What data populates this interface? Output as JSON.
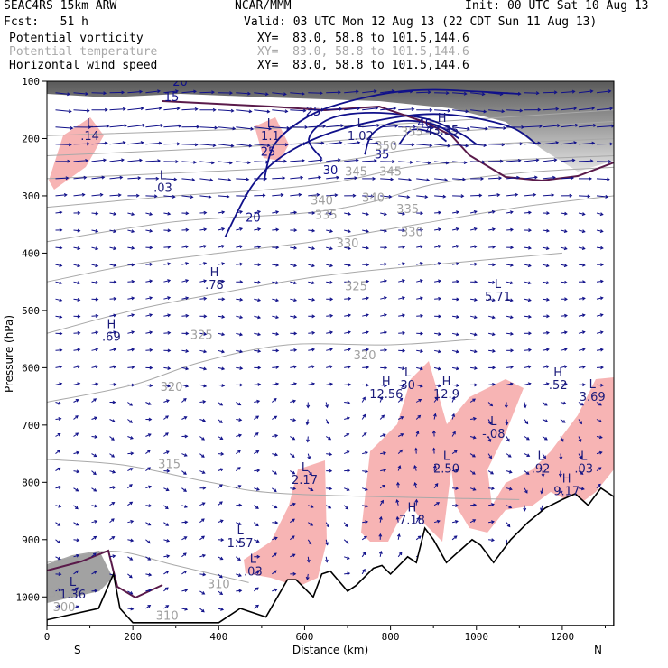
{
  "header": {
    "model": "SEAC4RS 15km ARW",
    "org": "NCAR/MMM",
    "init": "Init: 00 UTC Sat 10 Aug 13",
    "fcst": "Fcst:   51 h",
    "valid": "Valid: 03 UTC Mon 12 Aug 13 (22 CDT Sun 11 Aug 13)",
    "fields": [
      {
        "name": "Potential vorticity",
        "xy": "XY=  83.0, 58.8 to 101.5,144.6",
        "color": "#000000"
      },
      {
        "name": "Potential temperature",
        "xy": "XY=  83.0, 58.8 to 101.5,144.6",
        "color": "#a8a8a8"
      },
      {
        "name": "Horizontal wind speed",
        "xy": "XY=  83.0, 58.8 to 101.5,144.6",
        "color": "#000000"
      }
    ]
  },
  "chart_data": {
    "type": "cross-section",
    "xlabel": "Distance (km)",
    "ylabel": "Pressure (hPa)",
    "xlim": [
      0,
      1320
    ],
    "ylim": [
      1050,
      100
    ],
    "x_ticks": [
      0,
      200,
      400,
      600,
      800,
      1000,
      1200
    ],
    "y_ticks": [
      100,
      200,
      300,
      400,
      500,
      600,
      700,
      800,
      900,
      1000
    ],
    "x_end_labels": [
      "S",
      "N"
    ],
    "wind_speed_contours": [
      {
        "value": 20,
        "points": [
          [
            415,
            372
          ],
          [
            480,
            280
          ],
          [
            560,
            225
          ],
          [
            680,
            185
          ],
          [
            840,
            160
          ],
          [
            960,
            160
          ],
          [
            1080,
            180
          ],
          [
            1140,
            210
          ]
        ]
      },
      {
        "value": 25,
        "points": [
          [
            505,
            275
          ],
          [
            530,
            210
          ],
          [
            600,
            165
          ],
          [
            680,
            140
          ],
          [
            800,
            120
          ],
          [
            900,
            115
          ],
          [
            1000,
            118
          ],
          [
            1100,
            122
          ]
        ]
      },
      {
        "value": 30,
        "points": [
          [
            640,
            235
          ],
          [
            610,
            200
          ],
          [
            660,
            165
          ],
          [
            760,
            155
          ],
          [
            880,
            165
          ],
          [
            960,
            190
          ],
          [
            1000,
            210
          ]
        ]
      },
      {
        "value": 35,
        "points": [
          [
            740,
            228
          ],
          [
            760,
            190
          ],
          [
            820,
            170
          ],
          [
            900,
            175
          ],
          [
            960,
            200
          ]
        ]
      },
      {
        "value": 40,
        "points": [
          [
            820,
            210
          ],
          [
            850,
            185
          ],
          [
            900,
            190
          ],
          [
            930,
            205
          ]
        ]
      }
    ],
    "theta_contours": [
      {
        "value": 310,
        "points": [
          [
            0,
            940
          ],
          [
            150,
            920
          ],
          [
            300,
            945
          ],
          [
            470,
            975
          ]
        ]
      },
      {
        "value": 315,
        "points": [
          [
            0,
            760
          ],
          [
            180,
            770
          ],
          [
            380,
            800
          ],
          [
            560,
            820
          ],
          [
            1100,
            830
          ]
        ]
      },
      {
        "value": 320,
        "points": [
          [
            0,
            660
          ],
          [
            200,
            630
          ],
          [
            360,
            590
          ],
          [
            560,
            560
          ],
          [
            800,
            560
          ],
          [
            1000,
            550
          ]
        ]
      },
      {
        "value": 325,
        "points": [
          [
            0,
            540
          ],
          [
            200,
            500
          ],
          [
            400,
            470
          ],
          [
            640,
            440
          ],
          [
            900,
            420
          ],
          [
            1200,
            400
          ]
        ]
      },
      {
        "value": 330,
        "points": [
          [
            0,
            450
          ],
          [
            200,
            420
          ],
          [
            400,
            400
          ],
          [
            620,
            380
          ],
          [
            860,
            350
          ],
          [
            1100,
            320
          ],
          [
            1320,
            300
          ]
        ]
      },
      {
        "value": 335,
        "points": [
          [
            0,
            380
          ],
          [
            300,
            345
          ],
          [
            600,
            330
          ],
          [
            760,
            310
          ],
          [
            900,
            280
          ],
          [
            1100,
            260
          ],
          [
            1320,
            250
          ]
        ]
      },
      {
        "value": 340,
        "points": [
          [
            0,
            320
          ],
          [
            300,
            300
          ],
          [
            500,
            290
          ],
          [
            680,
            275
          ],
          [
            840,
            250
          ],
          [
            1000,
            240
          ],
          [
            1320,
            230
          ]
        ]
      },
      {
        "value": 345,
        "points": [
          [
            0,
            270
          ],
          [
            300,
            260
          ],
          [
            560,
            250
          ],
          [
            720,
            235
          ],
          [
            900,
            215
          ],
          [
            1320,
            200
          ]
        ]
      },
      {
        "value": 350,
        "points": [
          [
            0,
            230
          ],
          [
            300,
            220
          ],
          [
            560,
            210
          ],
          [
            820,
            195
          ],
          [
            1000,
            185
          ],
          [
            1320,
            170
          ]
        ]
      },
      {
        "value": 355,
        "points": [
          [
            0,
            195
          ],
          [
            400,
            185
          ],
          [
            800,
            175
          ],
          [
            1320,
            150
          ]
        ]
      }
    ],
    "pv_extrema": [
      {
        "kind": "L",
        "value": ".14",
        "x": 100,
        "y": 190
      },
      {
        "kind": "L",
        "value": ".03",
        "x": 270,
        "y": 280
      },
      {
        "kind": "L",
        "value": "1.1",
        "x": 520,
        "y": 190
      },
      {
        "kind": "L",
        "value": "1.02",
        "x": 730,
        "y": 190
      },
      {
        "kind": "H",
        "value": "43.35",
        "x": 920,
        "y": 180
      },
      {
        "kind": "H",
        "value": ".78",
        "x": 390,
        "y": 450
      },
      {
        "kind": "H",
        "value": ".69",
        "x": 150,
        "y": 540
      },
      {
        "kind": "L",
        "value": "5.71",
        "x": 1050,
        "y": 470
      },
      {
        "kind": "H",
        "value": "12.56",
        "x": 790,
        "y": 640
      },
      {
        "kind": "L",
        "value": "30",
        "x": 840,
        "y": 625
      },
      {
        "kind": "H",
        "value": "12.9",
        "x": 930,
        "y": 640
      },
      {
        "kind": "H",
        "value": ".52",
        "x": 1190,
        "y": 625
      },
      {
        "kind": "L",
        "value": "3.69",
        "x": 1270,
        "y": 645
      },
      {
        "kind": "L",
        "value": "-.08",
        "x": 1040,
        "y": 710
      },
      {
        "kind": "L",
        "value": "2.17",
        "x": 600,
        "y": 790
      },
      {
        "kind": "L",
        "value": "2.50",
        "x": 930,
        "y": 770
      },
      {
        "kind": "L",
        "value": ".92",
        "x": 1150,
        "y": 770
      },
      {
        "kind": "L",
        "value": ".03",
        "x": 1250,
        "y": 770
      },
      {
        "kind": "H",
        "value": "9.17",
        "x": 1210,
        "y": 810
      },
      {
        "kind": "H",
        "value": "7.18",
        "x": 850,
        "y": 860
      },
      {
        "kind": "L",
        "value": "1.57",
        "x": 450,
        "y": 900
      },
      {
        "kind": "L",
        "value": ".03",
        "x": 480,
        "y": 950
      },
      {
        "kind": "L",
        "value": "1.36",
        "x": 60,
        "y": 990
      }
    ],
    "wind_contour_labels": [
      {
        "text": "25",
        "x": 620,
        "y": 160
      },
      {
        "text": "25",
        "x": 515,
        "y": 230
      },
      {
        "text": "20",
        "x": 480,
        "y": 345
      },
      {
        "text": "30",
        "x": 660,
        "y": 262
      },
      {
        "text": "35",
        "x": 780,
        "y": 235
      },
      {
        "text": "40",
        "x": 880,
        "y": 180
      },
      {
        "text": "15",
        "x": 290,
        "y": 135
      },
      {
        "text": "20",
        "x": 310,
        "y": 108
      }
    ],
    "theta_contour_labels": [
      {
        "text": "315",
        "x": 285,
        "y": 775
      },
      {
        "text": "320",
        "x": 290,
        "y": 640
      },
      {
        "text": "320",
        "x": 740,
        "y": 585
      },
      {
        "text": "325",
        "x": 360,
        "y": 550
      },
      {
        "text": "325",
        "x": 720,
        "y": 465
      },
      {
        "text": "330",
        "x": 700,
        "y": 390
      },
      {
        "text": "330",
        "x": 850,
        "y": 370
      },
      {
        "text": "335",
        "x": 650,
        "y": 340
      },
      {
        "text": "335",
        "x": 840,
        "y": 330
      },
      {
        "text": "340",
        "x": 640,
        "y": 315
      },
      {
        "text": "340",
        "x": 760,
        "y": 310
      },
      {
        "text": "345",
        "x": 720,
        "y": 265
      },
      {
        "text": "345",
        "x": 800,
        "y": 265
      },
      {
        "text": "350",
        "x": 790,
        "y": 220
      },
      {
        "text": "355",
        "x": 850,
        "y": 195
      },
      {
        "text": "310",
        "x": 400,
        "y": 985
      },
      {
        "text": "305",
        "x": 30,
        "y": 1000
      },
      {
        "text": "300",
        "x": 40,
        "y": 1025
      },
      {
        "text": "310",
        "x": 280,
        "y": 1040
      }
    ],
    "terrain": [
      [
        0,
        1040
      ],
      [
        120,
        1020
      ],
      [
        155,
        960
      ],
      [
        170,
        1020
      ],
      [
        200,
        1045
      ],
      [
        400,
        1045
      ],
      [
        450,
        1020
      ],
      [
        510,
        1035
      ],
      [
        560,
        970
      ],
      [
        580,
        970
      ],
      [
        620,
        1000
      ],
      [
        640,
        960
      ],
      [
        660,
        955
      ],
      [
        700,
        990
      ],
      [
        720,
        980
      ],
      [
        760,
        950
      ],
      [
        780,
        945
      ],
      [
        800,
        960
      ],
      [
        840,
        930
      ],
      [
        860,
        940
      ],
      [
        880,
        880
      ],
      [
        900,
        900
      ],
      [
        930,
        940
      ],
      [
        960,
        920
      ],
      [
        990,
        900
      ],
      [
        1010,
        910
      ],
      [
        1040,
        940
      ],
      [
        1080,
        900
      ],
      [
        1120,
        870
      ],
      [
        1160,
        845
      ],
      [
        1200,
        830
      ],
      [
        1230,
        820
      ],
      [
        1260,
        840
      ],
      [
        1290,
        810
      ],
      [
        1320,
        825
      ]
    ]
  }
}
